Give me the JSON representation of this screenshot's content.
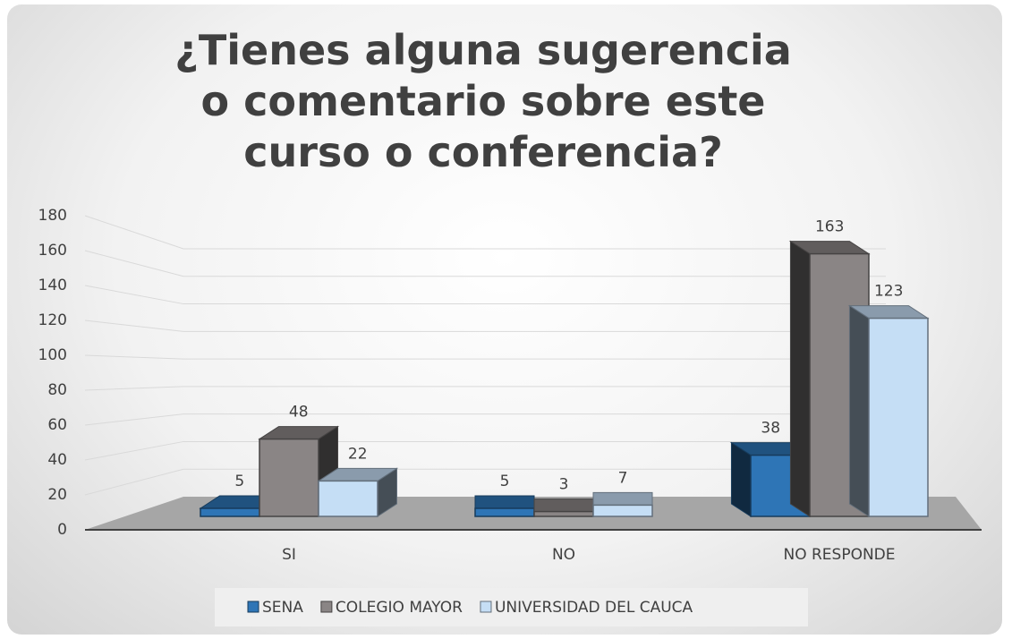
{
  "chart_data": {
    "type": "bar3d",
    "title": "¿Tienes alguna sugerencia o comentario sobre este curso o conferencia?",
    "categories": [
      "SI",
      "NO",
      "NO RESPONDE"
    ],
    "series": [
      {
        "name": "SENA",
        "color": "#2e75b6",
        "values": [
          5,
          5,
          38
        ]
      },
      {
        "name": "COLEGIO MAYOR",
        "color": "#8a8585",
        "values": [
          48,
          3,
          163
        ]
      },
      {
        "name": "UNIVERSIDAD DEL CAUCA",
        "color": "#c5def5",
        "values": [
          22,
          7,
          123
        ]
      }
    ],
    "ylim": [
      0,
      180
    ],
    "yticks": [
      0,
      20,
      40,
      60,
      80,
      100,
      120,
      140,
      160,
      180
    ],
    "grid": true,
    "legend": "bottom"
  }
}
